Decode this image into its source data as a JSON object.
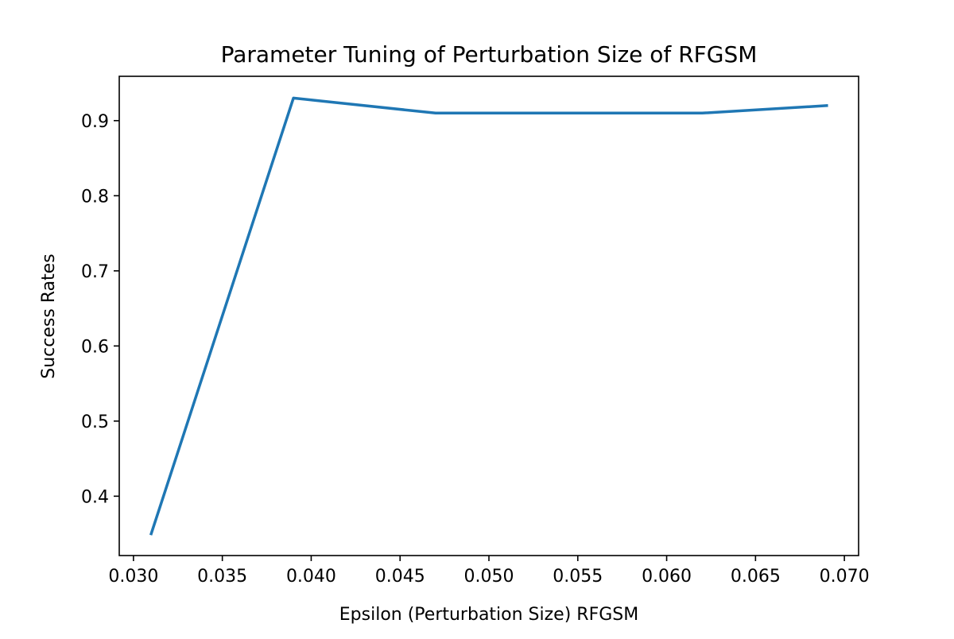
{
  "chart_data": {
    "type": "line",
    "title": "Parameter Tuning of Perturbation Size of RFGSM",
    "xlabel": "Epsilon (Perturbation Size) RFGSM",
    "ylabel": "Success Rates",
    "x": [
      0.031,
      0.039,
      0.047,
      0.055,
      0.062,
      0.069
    ],
    "series": [
      {
        "values": [
          0.35,
          0.93,
          0.91,
          0.91,
          0.91,
          0.92
        ],
        "color": "#1f77b4"
      }
    ],
    "xlim": [
      0.0292,
      0.0708
    ],
    "ylim": [
      0.321,
      0.959
    ],
    "xticks": [
      "0.030",
      "0.035",
      "0.040",
      "0.045",
      "0.050",
      "0.055",
      "0.060",
      "0.065",
      "0.070"
    ],
    "xtick_values": [
      0.03,
      0.035,
      0.04,
      0.045,
      0.05,
      0.055,
      0.06,
      0.065,
      0.07
    ],
    "yticks": [
      "0.4",
      "0.5",
      "0.6",
      "0.7",
      "0.8",
      "0.9"
    ],
    "ytick_values": [
      0.4,
      0.5,
      0.6,
      0.7,
      0.8,
      0.9
    ],
    "grid": false,
    "legend": "none"
  }
}
